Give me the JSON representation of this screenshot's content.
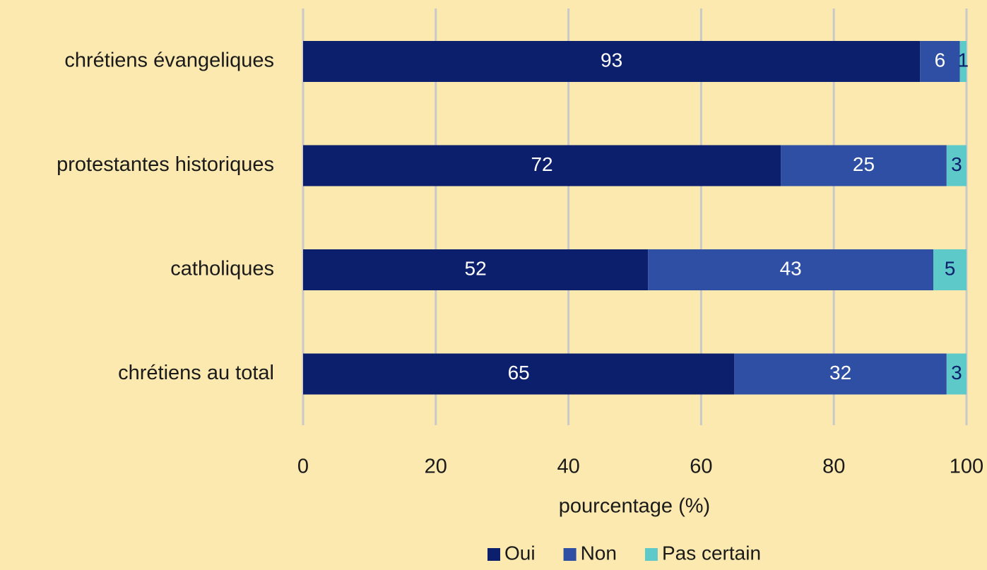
{
  "chart_data": {
    "type": "bar",
    "orientation": "horizontal",
    "stacked": true,
    "categories": [
      "chrétiens évangeliques",
      "protestantes historiques",
      "catholiques",
      "chrétiens au total"
    ],
    "series": [
      {
        "name": "Oui",
        "color": "#0b1f6c",
        "values": [
          93,
          72,
          52,
          65
        ]
      },
      {
        "name": "Non",
        "color": "#2e4fa3",
        "values": [
          6,
          25,
          43,
          32
        ]
      },
      {
        "name": "Pas certain",
        "color": "#5ec9c9",
        "values": [
          1,
          3,
          5,
          3
        ]
      }
    ],
    "xlim": [
      0,
      100
    ],
    "xticks": [
      0,
      20,
      40,
      60,
      80,
      100
    ],
    "grid": true,
    "xlabel": "pourcentage (%)",
    "legend": "bottom"
  }
}
